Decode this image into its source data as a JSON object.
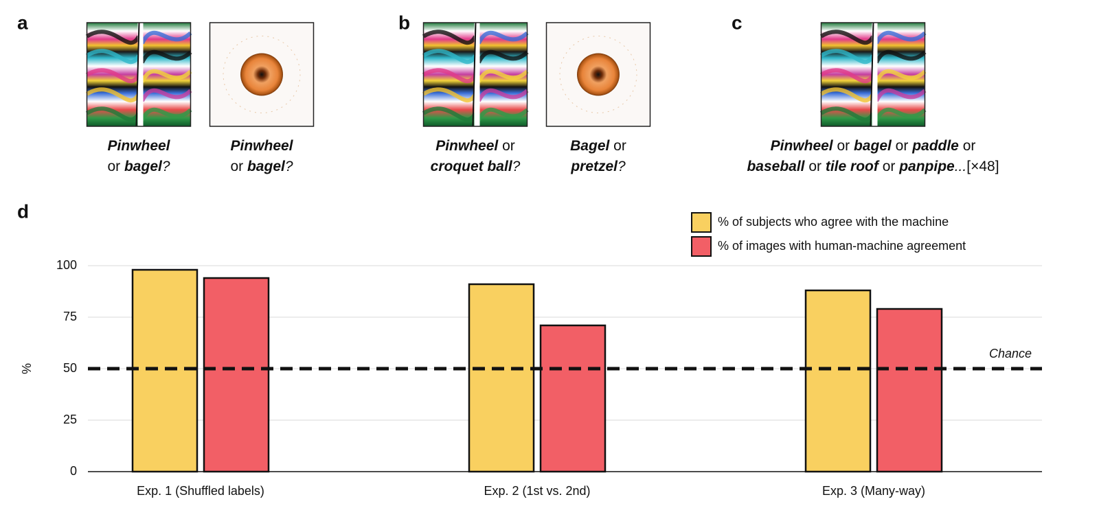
{
  "panels": [
    {
      "label": "a",
      "items": [
        {
          "image": "pinwheel",
          "caption": [
            [
              {
                "t": "Pinwheel",
                "s": "bi"
              }
            ],
            [
              {
                "t": "or ",
                "s": "n"
              },
              {
                "t": "bagel",
                "s": "bi"
              },
              {
                "t": "?",
                "s": "i"
              }
            ]
          ]
        },
        {
          "image": "bagel",
          "caption": [
            [
              {
                "t": "Pinwheel",
                "s": "bi"
              }
            ],
            [
              {
                "t": "or ",
                "s": "n"
              },
              {
                "t": "bagel",
                "s": "bi"
              },
              {
                "t": "?",
                "s": "i"
              }
            ]
          ]
        }
      ]
    },
    {
      "label": "b",
      "items": [
        {
          "image": "pinwheel",
          "caption": [
            [
              {
                "t": "Pinwheel",
                "s": "bi"
              },
              {
                "t": " or",
                "s": "n"
              }
            ],
            [
              {
                "t": "croquet ball",
                "s": "bi"
              },
              {
                "t": "?",
                "s": "i"
              }
            ]
          ]
        },
        {
          "image": "bagel",
          "caption": [
            [
              {
                "t": "Bagel",
                "s": "bi"
              },
              {
                "t": " or",
                "s": "n"
              }
            ],
            [
              {
                "t": "pretzel",
                "s": "bi"
              },
              {
                "t": "?",
                "s": "i"
              }
            ]
          ]
        }
      ]
    },
    {
      "label": "c",
      "items": [
        {
          "image": "pinwheel",
          "caption": [
            [
              {
                "t": "Pinwheel",
                "s": "bi"
              },
              {
                "t": " or ",
                "s": "n"
              },
              {
                "t": "bagel",
                "s": "bi"
              },
              {
                "t": " or ",
                "s": "n"
              },
              {
                "t": "paddle",
                "s": "bi"
              },
              {
                "t": " or",
                "s": "n"
              }
            ],
            [
              {
                "t": "baseball",
                "s": "bi"
              },
              {
                "t": " or ",
                "s": "n"
              },
              {
                "t": "tile roof",
                "s": "bi"
              },
              {
                "t": " or ",
                "s": "n"
              },
              {
                "t": "panpipe",
                "s": "bi"
              },
              {
                "t": "...",
                "s": "i"
              },
              {
                "t": "[×48]",
                "s": "n"
              }
            ]
          ]
        }
      ]
    }
  ],
  "chart_data": {
    "type": "bar",
    "panel_label": "d",
    "ylabel": "%",
    "categories": [
      "Exp. 1 (Shuffled labels)",
      "Exp. 2 (1st vs. 2nd)",
      "Exp. 3 (Many-way)"
    ],
    "series": [
      {
        "name": "% of subjects who agree with the machine",
        "color": "#f9d060",
        "values": [
          98,
          91,
          88
        ]
      },
      {
        "name": "% of images with human-machine agreement",
        "color": "#f25f66",
        "values": [
          94,
          71,
          79
        ]
      }
    ],
    "ylim": [
      0,
      100
    ],
    "yticks": [
      0,
      25,
      50,
      75,
      100
    ],
    "grid": true,
    "legend": "top-right",
    "chance": {
      "label": "Chance",
      "value": 50
    }
  }
}
